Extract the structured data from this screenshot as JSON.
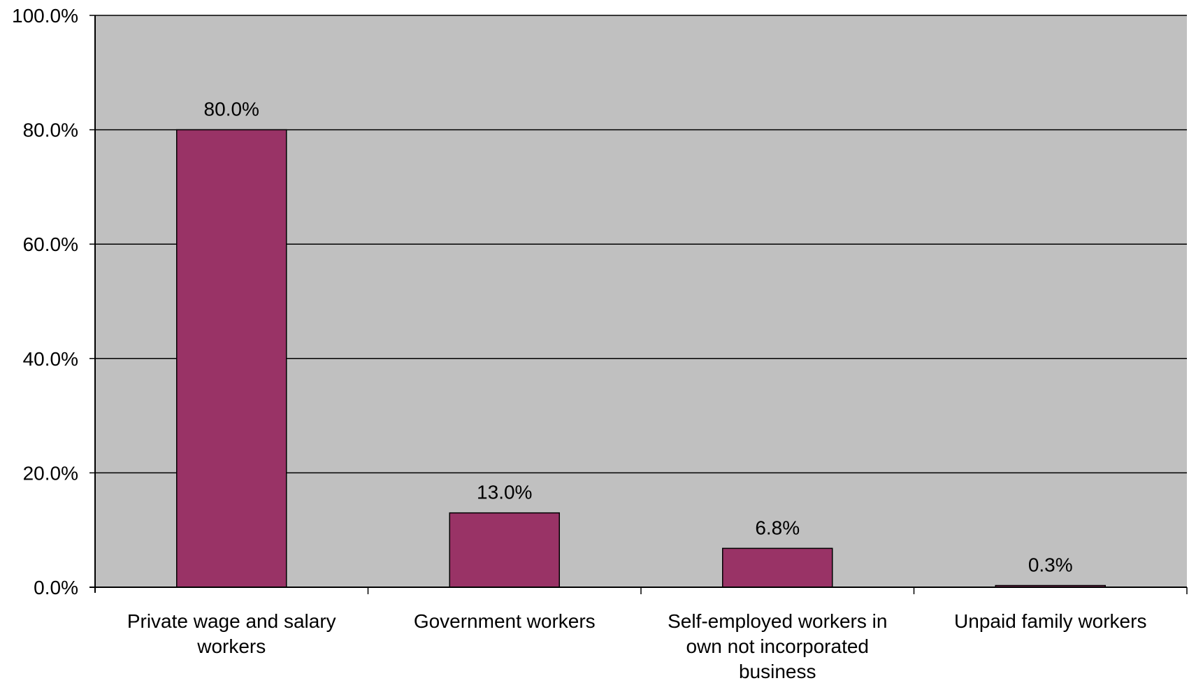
{
  "chart_data": {
    "type": "bar",
    "categories": [
      [
        "Private wage and salary",
        "workers"
      ],
      [
        "Government workers"
      ],
      [
        "Self-employed workers in",
        "own not incorporated",
        "business"
      ],
      [
        "Unpaid family workers"
      ]
    ],
    "values": [
      80.0,
      13.0,
      6.8,
      0.3
    ],
    "data_labels": [
      "80.0%",
      "13.0%",
      "6.8%",
      "0.3%"
    ],
    "ylim": [
      0,
      100
    ],
    "yticks": [
      0,
      20,
      40,
      60,
      80,
      100
    ],
    "ytick_labels": [
      "0.0%",
      "20.0%",
      "40.0%",
      "60.0%",
      "80.0%",
      "100.0%"
    ],
    "grid": true,
    "title": "",
    "xlabel": "",
    "ylabel": "",
    "colors": {
      "bar": "#993366",
      "plot_background": "#c0c0c0",
      "gridline": "#000000",
      "axis": "#000000"
    }
  }
}
